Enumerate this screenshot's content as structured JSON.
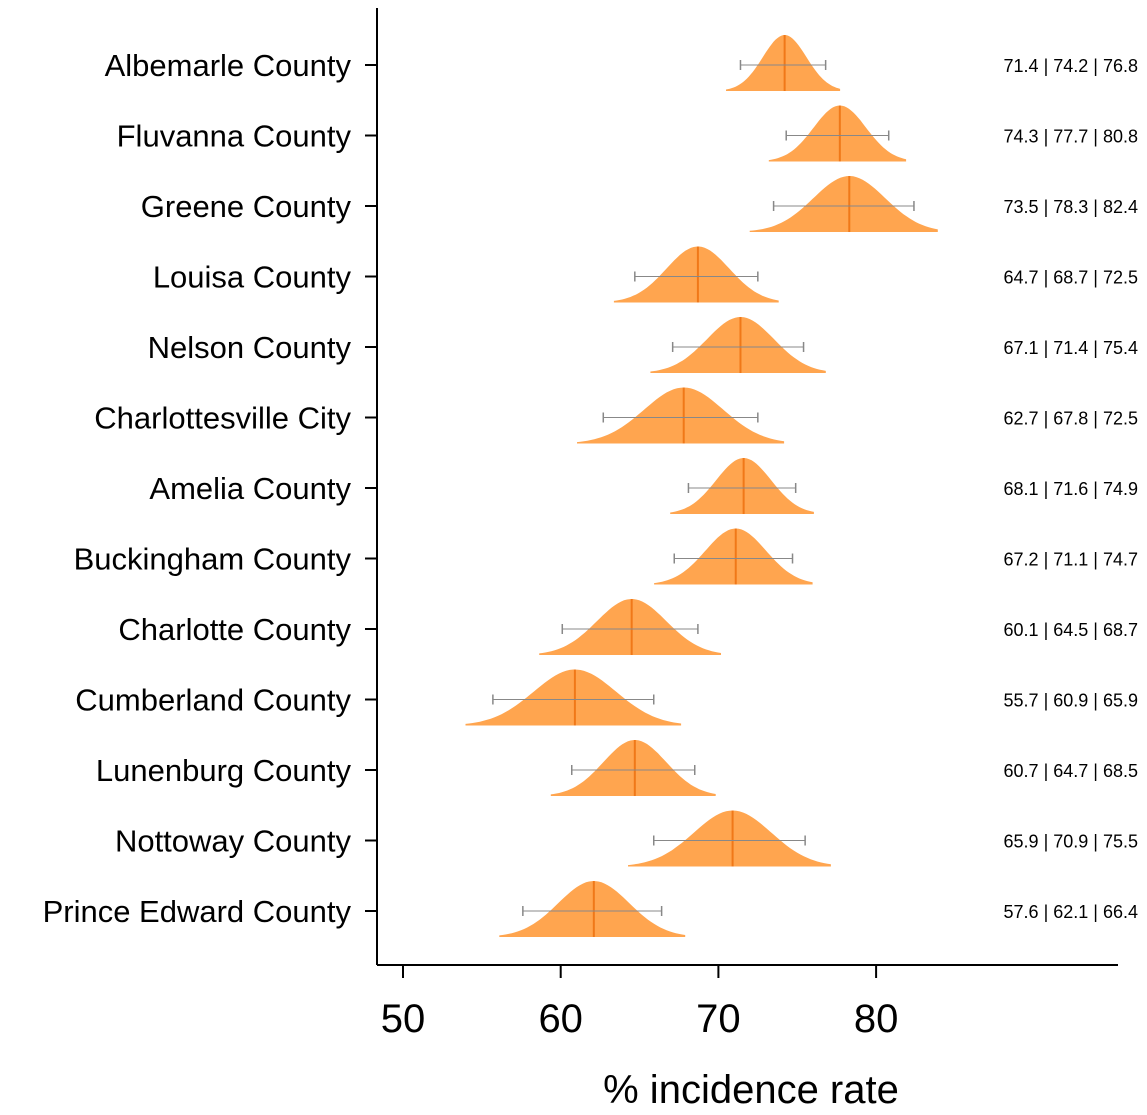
{
  "chart_data": {
    "type": "ridgeline-interval",
    "title": "",
    "xlabel": "% incidence rate",
    "ylabel": "",
    "xlim": [
      48.5,
      95
    ],
    "x_ticks": [
      50,
      60,
      70,
      80
    ],
    "grid": false,
    "colors": {
      "fill": "#FFA54F",
      "median": "#F07818",
      "whisker": "#888888",
      "axis": "#000000"
    },
    "rows": [
      {
        "name": "Albemarle County",
        "low": 71.4,
        "median": 74.2,
        "high": 76.8,
        "label": "71.4 | 74.2 | 76.8"
      },
      {
        "name": "Fluvanna County",
        "low": 74.3,
        "median": 77.7,
        "high": 80.8,
        "label": "74.3 | 77.7 | 80.8"
      },
      {
        "name": "Greene County",
        "low": 73.5,
        "median": 78.3,
        "high": 82.4,
        "label": "73.5 | 78.3 | 82.4"
      },
      {
        "name": "Louisa County",
        "low": 64.7,
        "median": 68.7,
        "high": 72.5,
        "label": "64.7 | 68.7 | 72.5"
      },
      {
        "name": "Nelson County",
        "low": 67.1,
        "median": 71.4,
        "high": 75.4,
        "label": "67.1 | 71.4 | 75.4"
      },
      {
        "name": "Charlottesville City",
        "low": 62.7,
        "median": 67.8,
        "high": 72.5,
        "label": "62.7 | 67.8 | 72.5"
      },
      {
        "name": "Amelia County",
        "low": 68.1,
        "median": 71.6,
        "high": 74.9,
        "label": "68.1 | 71.6 | 74.9"
      },
      {
        "name": "Buckingham County",
        "low": 67.2,
        "median": 71.1,
        "high": 74.7,
        "label": "67.2 | 71.1 | 74.7"
      },
      {
        "name": "Charlotte County",
        "low": 60.1,
        "median": 64.5,
        "high": 68.7,
        "label": "60.1 | 64.5 | 68.7"
      },
      {
        "name": "Cumberland County",
        "low": 55.7,
        "median": 60.9,
        "high": 65.9,
        "label": "55.7 | 60.9 | 65.9"
      },
      {
        "name": "Lunenburg County",
        "low": 60.7,
        "median": 64.7,
        "high": 68.5,
        "label": "60.7 | 64.7 | 68.5"
      },
      {
        "name": "Nottoway County",
        "low": 65.9,
        "median": 70.9,
        "high": 75.5,
        "label": "65.9 | 70.9 | 75.5"
      },
      {
        "name": "Prince Edward County",
        "low": 57.6,
        "median": 62.1,
        "high": 66.4,
        "label": "57.6 | 62.1 | 66.4"
      }
    ]
  }
}
